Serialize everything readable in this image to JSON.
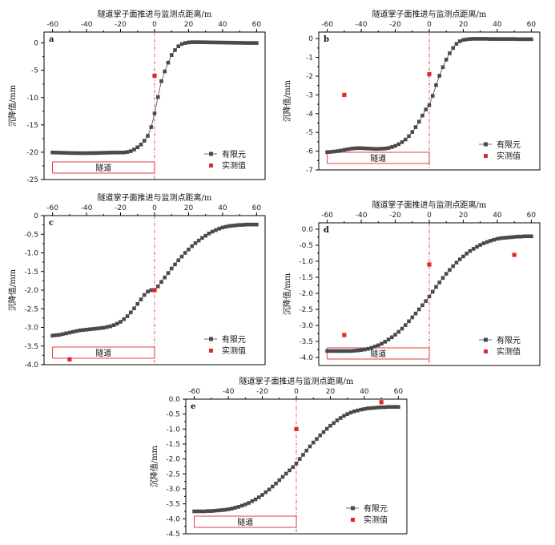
{
  "figure": {
    "legend_fem": "有限元",
    "legend_measured": "实测值",
    "tunnel_label": "隧道",
    "colors": {
      "fem": "#4a4a4a",
      "measured": "#e0282a",
      "tunnel_box": "#e0282a",
      "zero_line": "#e0282a",
      "axis": "#000000"
    }
  },
  "chart_data": [
    {
      "panel": "a",
      "type": "scatter",
      "xlabel": "隧道掌子面推进与监测点距离/m",
      "ylabel": "沉降值/mm",
      "xlim": [
        -65,
        65
      ],
      "ylim": [
        -25,
        2
      ],
      "xticks": [
        -60,
        -40,
        -20,
        0,
        20,
        40,
        60
      ],
      "yticks": [
        0,
        -5,
        -10,
        -15,
        -20,
        -25
      ],
      "ytick_labels": [
        "0",
        "-5",
        "-10",
        "-15",
        "-20",
        "-25"
      ],
      "series": [
        {
          "name": "有限元",
          "x": [
            -60,
            -58,
            -56,
            -54,
            -52,
            -50,
            -48,
            -46,
            -44,
            -42,
            -40,
            -38,
            -36,
            -34,
            -32,
            -30,
            -28,
            -26,
            -24,
            -22,
            -20,
            -18,
            -16,
            -14,
            -12,
            -10,
            -8,
            -6,
            -4,
            -2,
            0,
            2,
            4,
            6,
            8,
            10,
            12,
            14,
            16,
            18,
            20,
            22,
            24,
            26,
            28,
            30,
            32,
            34,
            36,
            38,
            40,
            42,
            44,
            46,
            48,
            50,
            52,
            54,
            56,
            58,
            60
          ],
          "y": [
            -20.05,
            -20.06,
            -20.08,
            -20.1,
            -20.12,
            -20.14,
            -20.15,
            -20.16,
            -20.17,
            -20.17,
            -20.17,
            -20.16,
            -20.15,
            -20.14,
            -20.12,
            -20.1,
            -20.08,
            -20.07,
            -20.06,
            -20.05,
            -20.05,
            -20.05,
            -19.95,
            -19.8,
            -19.5,
            -19.1,
            -18.6,
            -17.9,
            -17.0,
            -15.4,
            -12.9,
            -9.9,
            -7.0,
            -5.2,
            -3.6,
            -2.2,
            -1.3,
            -0.6,
            -0.2,
            0.0,
            0.1,
            0.15,
            0.15,
            0.15,
            0.14,
            0.13,
            0.12,
            0.11,
            0.1,
            0.09,
            0.08,
            0.07,
            0.06,
            0.05,
            0.04,
            0.03,
            0.02,
            0.01,
            0.0,
            0.0,
            0.0
          ]
        },
        {
          "name": "实测值",
          "x": [
            0
          ],
          "y": [
            -6.0
          ]
        }
      ],
      "tunnel_extent": [
        -60,
        0
      ]
    },
    {
      "panel": "b",
      "type": "scatter",
      "xlabel": "隧道掌子面推进与监测点距离/m",
      "ylabel": "沉降值/mm",
      "xlim": [
        -65,
        65
      ],
      "ylim": [
        -7,
        0.35
      ],
      "xticks": [
        -60,
        -40,
        -20,
        0,
        20,
        40,
        60
      ],
      "yticks": [
        0,
        -1,
        -2,
        -3,
        -4,
        -5,
        -6,
        -7
      ],
      "ytick_labels": [
        "0",
        "-1",
        "-2",
        "-3",
        "-4",
        "-5",
        "-6",
        "-7"
      ],
      "series": [
        {
          "name": "有限元",
          "x": [
            -60,
            -58,
            -56,
            -54,
            -52,
            -50,
            -48,
            -46,
            -44,
            -42,
            -40,
            -38,
            -36,
            -34,
            -32,
            -30,
            -28,
            -26,
            -24,
            -22,
            -20,
            -18,
            -16,
            -14,
            -12,
            -10,
            -8,
            -6,
            -4,
            -2,
            0,
            2,
            4,
            6,
            8,
            10,
            12,
            14,
            16,
            18,
            20,
            22,
            24,
            26,
            28,
            30,
            32,
            34,
            36,
            38,
            40,
            42,
            44,
            46,
            48,
            50,
            52,
            54,
            56,
            58,
            60
          ],
          "y": [
            -6.05,
            -6.04,
            -6.02,
            -6.0,
            -5.97,
            -5.93,
            -5.9,
            -5.87,
            -5.85,
            -5.84,
            -5.84,
            -5.85,
            -5.86,
            -5.87,
            -5.88,
            -5.88,
            -5.87,
            -5.86,
            -5.83,
            -5.78,
            -5.72,
            -5.63,
            -5.52,
            -5.38,
            -5.2,
            -4.98,
            -4.72,
            -4.43,
            -4.1,
            -3.78,
            -3.55,
            -3.05,
            -2.48,
            -1.98,
            -1.52,
            -1.12,
            -0.78,
            -0.5,
            -0.28,
            -0.14,
            -0.07,
            -0.04,
            -0.02,
            -0.01,
            -0.01,
            -0.01,
            -0.01,
            -0.01,
            -0.02,
            -0.02,
            -0.02,
            -0.02,
            -0.02,
            -0.02,
            -0.02,
            -0.02,
            -0.03,
            -0.03,
            -0.03,
            -0.03,
            -0.03
          ]
        },
        {
          "name": "实测值",
          "x": [
            -50,
            0
          ],
          "y": [
            -3.0,
            -1.9
          ]
        }
      ],
      "tunnel_extent": [
        -60,
        0
      ]
    },
    {
      "panel": "c",
      "type": "scatter",
      "xlabel": "隧道掌子面推进与监测点距离/m",
      "ylabel": "沉降值/mm",
      "xlim": [
        -65,
        65
      ],
      "ylim": [
        -4.0,
        0
      ],
      "xticks": [
        -60,
        -40,
        -20,
        0,
        20,
        40,
        60
      ],
      "yticks": [
        0,
        -0.5,
        -1.0,
        -1.5,
        -2.0,
        -2.5,
        -3.0,
        -3.5,
        -4.0
      ],
      "ytick_labels": [
        "0",
        "-0.5",
        "-1.0",
        "-1.5",
        "-2.0",
        "-2.5",
        "-3.0",
        "-3.5",
        "-4.0"
      ],
      "series": [
        {
          "name": "有限元",
          "x": [
            -60,
            -58,
            -56,
            -54,
            -52,
            -50,
            -48,
            -46,
            -44,
            -42,
            -40,
            -38,
            -36,
            -34,
            -32,
            -30,
            -28,
            -26,
            -24,
            -22,
            -20,
            -18,
            -16,
            -14,
            -12,
            -10,
            -8,
            -6,
            -4,
            -2,
            0,
            2,
            4,
            6,
            8,
            10,
            12,
            14,
            16,
            18,
            20,
            22,
            24,
            26,
            28,
            30,
            32,
            34,
            36,
            38,
            40,
            42,
            44,
            46,
            48,
            50,
            52,
            54,
            56,
            58,
            60
          ],
          "y": [
            -3.22,
            -3.21,
            -3.2,
            -3.18,
            -3.16,
            -3.14,
            -3.12,
            -3.1,
            -3.08,
            -3.07,
            -3.06,
            -3.05,
            -3.04,
            -3.03,
            -3.02,
            -3.01,
            -2.99,
            -2.97,
            -2.94,
            -2.9,
            -2.85,
            -2.78,
            -2.7,
            -2.6,
            -2.49,
            -2.37,
            -2.25,
            -2.13,
            -2.04,
            -2.0,
            -2.0,
            -1.9,
            -1.78,
            -1.66,
            -1.54,
            -1.42,
            -1.31,
            -1.2,
            -1.1,
            -1.0,
            -0.91,
            -0.82,
            -0.74,
            -0.67,
            -0.6,
            -0.54,
            -0.48,
            -0.43,
            -0.39,
            -0.35,
            -0.32,
            -0.3,
            -0.28,
            -0.27,
            -0.26,
            -0.25,
            -0.25,
            -0.24,
            -0.24,
            -0.24,
            -0.24
          ]
        },
        {
          "name": "实测值",
          "x": [
            -50,
            0
          ],
          "y": [
            -3.86,
            -2.0
          ]
        }
      ],
      "tunnel_extent": [
        -60,
        0
      ]
    },
    {
      "panel": "d",
      "type": "scatter",
      "xlabel": "隧道掌子面推进与监测点距离/m",
      "ylabel": "沉降值/mm",
      "xlim": [
        -65,
        65
      ],
      "ylim": [
        -4.25,
        0.2
      ],
      "xticks": [
        -60,
        -40,
        -20,
        0,
        20,
        40,
        60
      ],
      "yticks": [
        0,
        -0.5,
        -1.0,
        -1.5,
        -2.0,
        -2.5,
        -3.0,
        -3.5,
        -4.0
      ],
      "ytick_labels": [
        "0.0",
        "-0.5",
        "-1.0",
        "-1.5",
        "-2.0",
        "-2.5",
        "-3.0",
        "-3.5",
        "-4.0"
      ],
      "series": [
        {
          "name": "有限元",
          "x": [
            -60,
            -58,
            -56,
            -54,
            -52,
            -50,
            -48,
            -46,
            -44,
            -42,
            -40,
            -38,
            -36,
            -34,
            -32,
            -30,
            -28,
            -26,
            -24,
            -22,
            -20,
            -18,
            -16,
            -14,
            -12,
            -10,
            -8,
            -6,
            -4,
            -2,
            0,
            2,
            4,
            6,
            8,
            10,
            12,
            14,
            16,
            18,
            20,
            22,
            24,
            26,
            28,
            30,
            32,
            34,
            36,
            38,
            40,
            42,
            44,
            46,
            48,
            50,
            52,
            54,
            56,
            58,
            60
          ],
          "y": [
            -3.8,
            -3.8,
            -3.8,
            -3.8,
            -3.8,
            -3.8,
            -3.8,
            -3.8,
            -3.79,
            -3.78,
            -3.77,
            -3.75,
            -3.73,
            -3.7,
            -3.66,
            -3.62,
            -3.57,
            -3.51,
            -3.44,
            -3.37,
            -3.29,
            -3.2,
            -3.1,
            -2.99,
            -2.87,
            -2.75,
            -2.63,
            -2.5,
            -2.37,
            -2.24,
            -2.1,
            -1.95,
            -1.8,
            -1.66,
            -1.52,
            -1.39,
            -1.27,
            -1.15,
            -1.04,
            -0.94,
            -0.85,
            -0.76,
            -0.68,
            -0.61,
            -0.55,
            -0.49,
            -0.44,
            -0.4,
            -0.36,
            -0.33,
            -0.3,
            -0.28,
            -0.27,
            -0.26,
            -0.25,
            -0.24,
            -0.23,
            -0.23,
            -0.22,
            -0.22,
            -0.22
          ]
        },
        {
          "name": "实测值",
          "x": [
            -50,
            0,
            50
          ],
          "y": [
            -3.3,
            -1.1,
            -0.8
          ]
        }
      ],
      "tunnel_extent": [
        -60,
        0
      ]
    },
    {
      "panel": "e",
      "type": "scatter",
      "xlabel": "隧道掌子面推进与监测点距离/m",
      "ylabel": "沉降值/mm",
      "xlim": [
        -65,
        65
      ],
      "ylim": [
        -4.5,
        0
      ],
      "xticks": [
        -60,
        -40,
        -20,
        0,
        20,
        40,
        60
      ],
      "yticks": [
        0,
        -0.5,
        -1.0,
        -1.5,
        -2.0,
        -2.5,
        -3.0,
        -3.5,
        -4.0,
        -4.5
      ],
      "ytick_labels": [
        "0.0",
        "-0.5",
        "-1.0",
        "-1.5",
        "-2.0",
        "-2.5",
        "-3.0",
        "-3.5",
        "-4.0",
        "-4.5"
      ],
      "series": [
        {
          "name": "有限元",
          "x": [
            -60,
            -58,
            -56,
            -54,
            -52,
            -50,
            -48,
            -46,
            -44,
            -42,
            -40,
            -38,
            -36,
            -34,
            -32,
            -30,
            -28,
            -26,
            -24,
            -22,
            -20,
            -18,
            -16,
            -14,
            -12,
            -10,
            -8,
            -6,
            -4,
            -2,
            0,
            2,
            4,
            6,
            8,
            10,
            12,
            14,
            16,
            18,
            20,
            22,
            24,
            26,
            28,
            30,
            32,
            34,
            36,
            38,
            40,
            42,
            44,
            46,
            48,
            50,
            52,
            54,
            56,
            58,
            60
          ],
          "y": [
            -3.75,
            -3.75,
            -3.75,
            -3.75,
            -3.74,
            -3.74,
            -3.73,
            -3.72,
            -3.71,
            -3.7,
            -3.68,
            -3.66,
            -3.63,
            -3.6,
            -3.56,
            -3.52,
            -3.47,
            -3.41,
            -3.35,
            -3.28,
            -3.2,
            -3.11,
            -3.02,
            -2.92,
            -2.82,
            -2.71,
            -2.6,
            -2.49,
            -2.38,
            -2.27,
            -2.15,
            -2.0,
            -1.86,
            -1.72,
            -1.58,
            -1.45,
            -1.33,
            -1.21,
            -1.1,
            -0.99,
            -0.89,
            -0.8,
            -0.71,
            -0.63,
            -0.56,
            -0.5,
            -0.45,
            -0.41,
            -0.38,
            -0.35,
            -0.33,
            -0.31,
            -0.3,
            -0.29,
            -0.28,
            -0.27,
            -0.27,
            -0.26,
            -0.26,
            -0.26,
            -0.26
          ]
        },
        {
          "name": "实测值",
          "x": [
            0,
            50
          ],
          "y": [
            -1.0,
            -0.1
          ]
        }
      ],
      "tunnel_extent": [
        -60,
        0
      ]
    }
  ]
}
